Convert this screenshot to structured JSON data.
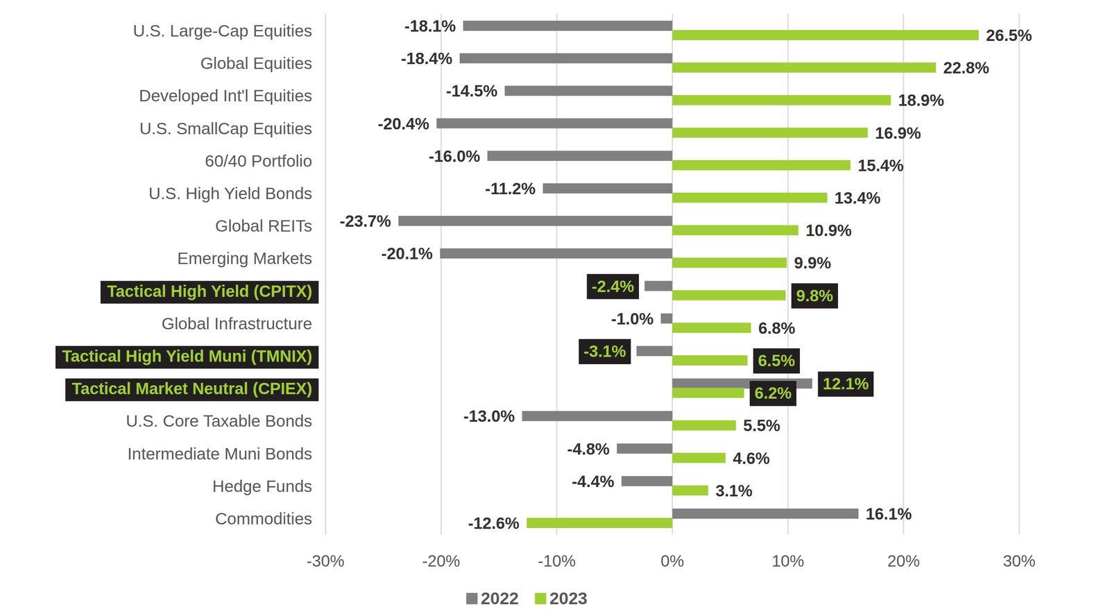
{
  "chart_data": {
    "type": "bar",
    "orientation": "horizontal",
    "categories": [
      "U.S. Large-Cap Equities",
      "Global Equities",
      "Developed Int'l Equities",
      "U.S. SmallCap Equities",
      "60/40 Portfolio",
      "U.S. High Yield Bonds",
      "Global REITs",
      "Emerging Markets",
      "Tactical High Yield (CPITX)",
      "Global Infrastructure",
      "Tactical High Yield Muni (TMNIX)",
      "Tactical Market Neutral (CPIEX)",
      "U.S. Core Taxable Bonds",
      "Intermediate Muni Bonds",
      "Hedge Funds",
      "Commodities"
    ],
    "series": [
      {
        "name": "2022",
        "color": "#808080",
        "values": [
          -18.1,
          -18.4,
          -14.5,
          -20.4,
          -16.0,
          -11.2,
          -23.7,
          -20.1,
          -2.4,
          -1.0,
          -3.1,
          12.1,
          -13.0,
          -4.8,
          -4.4,
          16.1
        ],
        "value_labels": [
          "-18.1%",
          "-18.4%",
          "-14.5%",
          "-20.4%",
          "-16.0%",
          "-11.2%",
          "-23.7%",
          "-20.1%",
          "-2.4%",
          "-1.0%",
          "-3.1%",
          "12.1%",
          "-13.0%",
          "-4.8%",
          "-4.4%",
          "16.1%"
        ]
      },
      {
        "name": "2023",
        "color": "#9fcf32",
        "values": [
          26.5,
          22.8,
          18.9,
          16.9,
          15.4,
          13.4,
          10.9,
          9.9,
          9.8,
          6.8,
          6.5,
          6.2,
          5.5,
          4.6,
          3.1,
          -12.6
        ],
        "value_labels": [
          "26.5%",
          "22.8%",
          "18.9%",
          "16.9%",
          "15.4%",
          "13.4%",
          "10.9%",
          "9.9%",
          "9.8%",
          "6.8%",
          "6.5%",
          "6.2%",
          "5.5%",
          "4.6%",
          "3.1%",
          "-12.6%"
        ]
      }
    ],
    "xlim": [
      -30,
      30
    ],
    "xticks": [
      {
        "value": -30,
        "label": "-30%"
      },
      {
        "value": -20,
        "label": "-20%"
      },
      {
        "value": -10,
        "label": "-10%"
      },
      {
        "value": 0,
        "label": "0%"
      },
      {
        "value": 10,
        "label": "10%"
      },
      {
        "value": 20,
        "label": "20%"
      },
      {
        "value": 30,
        "label": "30%"
      }
    ],
    "grid": true,
    "data_labels": true,
    "legend": "bottom"
  }
}
